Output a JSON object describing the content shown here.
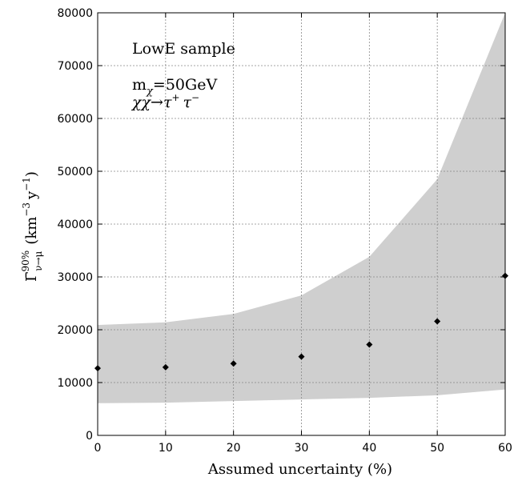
{
  "chart_data": {
    "type": "scatter",
    "title": "",
    "xlabel": "Assumed uncertainty (%)",
    "ylabel": {
      "base": "Γ̄",
      "sup": "90%",
      "sub": "ν→μ",
      "units": "(km",
      "units_exp1": "−3",
      "units_mid": "y",
      "units_exp2": "−1",
      "units_end": ")"
    },
    "xlim": [
      0,
      60
    ],
    "ylim": [
      0,
      80000
    ],
    "xticks": [
      0,
      10,
      20,
      30,
      40,
      50,
      60
    ],
    "yticks": [
      0,
      10000,
      20000,
      30000,
      40000,
      50000,
      60000,
      70000,
      80000
    ],
    "grid": true,
    "series": [
      {
        "kind": "points",
        "x": [
          0,
          10,
          20,
          30,
          40,
          50,
          60
        ],
        "y": [
          12700,
          12900,
          13600,
          14900,
          17200,
          21600,
          30200
        ],
        "color": "#000000"
      },
      {
        "kind": "band",
        "x": [
          0,
          10,
          20,
          30,
          40,
          50,
          60
        ],
        "lower": [
          6100,
          6200,
          6500,
          6800,
          7100,
          7600,
          8700
        ],
        "upper": [
          20900,
          21400,
          23000,
          26500,
          33800,
          48500,
          80000
        ],
        "color": "#cfcfcf"
      }
    ],
    "annotations": {
      "sample": "LowE sample",
      "mass_base": "m",
      "mass_sub": "χ",
      "mass_value": "=50GeV",
      "channel_lhs": "χχ",
      "channel_arrow": "→",
      "channel_tau": "τ",
      "channel_plus": "+",
      "channel_minus": "−"
    }
  }
}
